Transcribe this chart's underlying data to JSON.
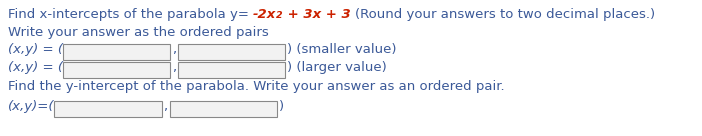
{
  "bg_color": "#FFFFFF",
  "text_color": "#3B5998",
  "red_color": "#CC2200",
  "box_fill": "#F2F2F2",
  "box_edge": "#888888",
  "font_size": 9.5,
  "line1_normal1": "Find x-intercepts of the parabola y= ",
  "line1_red": "-2x",
  "line1_super": "2",
  "line1_red2": " + 3x + 3 ",
  "line1_normal2": "(Round your answers to two decimal places.)",
  "line2": "Write your answer as the ordered pairs",
  "line3_pre": "(x,y) = (",
  "line3_suf": ") (smaller value)",
  "line4_pre": "(x,y) = (",
  "line4_suf": ") (larger value)",
  "line5": "Find the y-intercept of the parabola. Write your answer as an ordered pair.",
  "line6_pre": "(x,y)=(",
  "line6_suf": ")"
}
